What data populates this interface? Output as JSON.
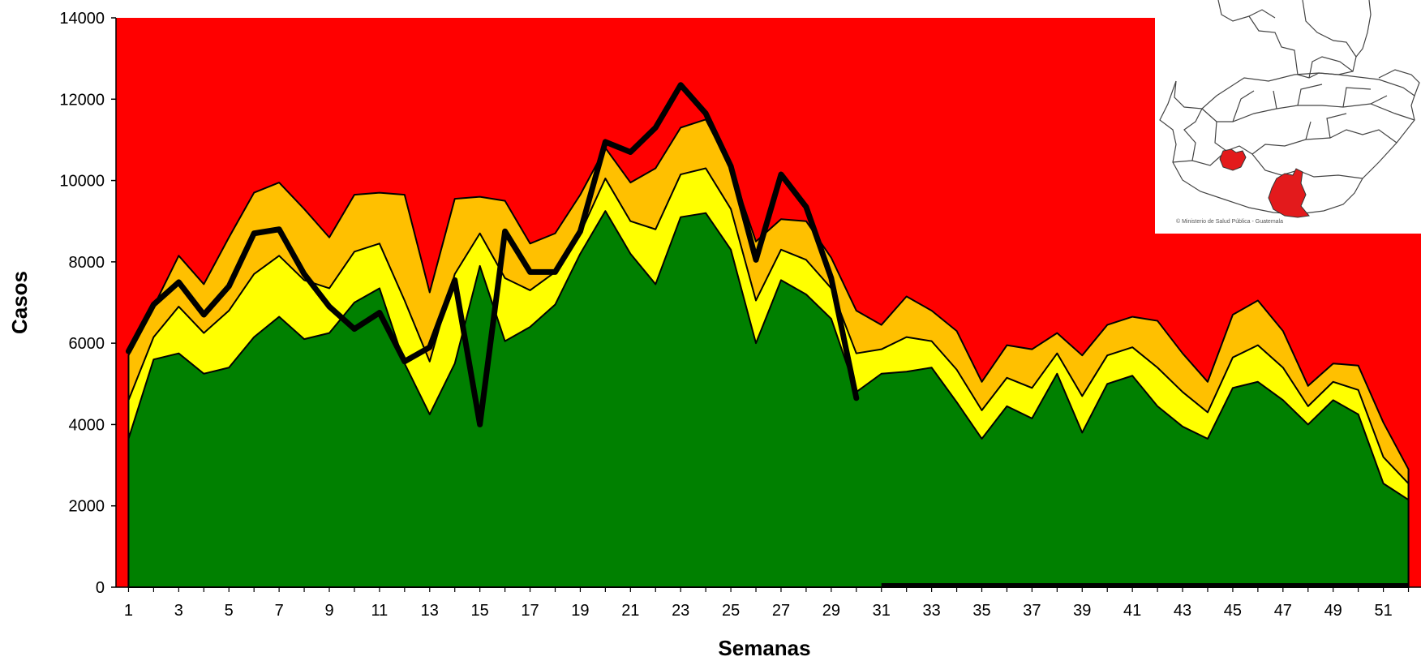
{
  "chart_data": {
    "type": "area",
    "xlabel": "Semanas",
    "ylabel": "Casos",
    "ylim": [
      0,
      14000
    ],
    "yticks": [
      0,
      2000,
      4000,
      6000,
      8000,
      10000,
      12000,
      14000
    ],
    "xticks": [
      1,
      3,
      5,
      7,
      9,
      11,
      13,
      15,
      17,
      19,
      21,
      23,
      25,
      27,
      29,
      31,
      33,
      35,
      37,
      39,
      41,
      43,
      45,
      47,
      49,
      51
    ],
    "x": [
      1,
      2,
      3,
      4,
      5,
      6,
      7,
      8,
      9,
      10,
      11,
      12,
      13,
      14,
      15,
      16,
      17,
      18,
      19,
      20,
      21,
      22,
      23,
      24,
      25,
      26,
      27,
      28,
      29,
      30,
      31,
      32,
      33,
      34,
      35,
      36,
      37,
      38,
      39,
      40,
      41,
      42,
      43,
      44,
      45,
      46,
      47,
      48,
      49,
      50,
      51,
      52
    ],
    "grid": false,
    "legend": "none",
    "background_color": "#ff0000",
    "series": [
      {
        "color": "#ffc000",
        "values": [
          5700,
          6900,
          8150,
          7450,
          8600,
          9700,
          9950,
          9300,
          8600,
          9650,
          9700,
          9650,
          7250,
          9550,
          9600,
          9500,
          8450,
          8700,
          9650,
          10800,
          9950,
          10300,
          11300,
          11500,
          10300,
          8500,
          9050,
          9000,
          8100,
          6800,
          6450,
          7150,
          6800,
          6300,
          5050,
          5950,
          5850,
          6250,
          5700,
          6450,
          6650,
          6550,
          5750,
          5050,
          6700,
          7050,
          6300,
          4950,
          5500,
          5450,
          4050,
          2900
        ]
      },
      {
        "color": "#ffff00",
        "values": [
          4600,
          6150,
          6900,
          6250,
          6800,
          7700,
          8150,
          7550,
          7350,
          8250,
          8450,
          7050,
          5550,
          7700,
          8700,
          7600,
          7300,
          7750,
          8700,
          10050,
          9000,
          8800,
          10150,
          10300,
          9300,
          7050,
          8300,
          8050,
          7350,
          5750,
          5850,
          6150,
          6050,
          5350,
          4350,
          5150,
          4900,
          5750,
          4700,
          5700,
          5900,
          5400,
          4800,
          4300,
          5650,
          5950,
          5400,
          4450,
          5050,
          4850,
          3200,
          2550
        ]
      },
      {
        "color": "#008000",
        "values": [
          3650,
          5600,
          5750,
          5250,
          5400,
          6150,
          6650,
          6100,
          6250,
          7000,
          7350,
          5500,
          4250,
          5500,
          7900,
          6050,
          6400,
          6950,
          8200,
          9250,
          8200,
          7450,
          9100,
          9200,
          8300,
          6000,
          7550,
          7200,
          6600,
          4800,
          5250,
          5300,
          5400,
          4550,
          3650,
          4450,
          4150,
          5250,
          3800,
          5000,
          5200,
          4450,
          3950,
          3650,
          4900,
          5050,
          4600,
          4000,
          4600,
          4250,
          2550,
          2150
        ]
      },
      {
        "color": "#000000",
        "values": [
          5800,
          6950,
          7500,
          6700,
          7400,
          8700,
          8800,
          7700,
          6900,
          6350,
          6750,
          5550,
          5900,
          7550,
          4000,
          8750,
          7750,
          7750,
          8750,
          10950,
          10700,
          11300,
          12350,
          11650,
          10350,
          8050,
          10150,
          9350,
          7600,
          4650,
          null,
          null,
          null,
          null,
          null,
          null,
          null,
          null,
          null,
          null,
          null,
          null,
          null,
          null,
          null,
          null,
          null,
          null,
          null,
          null,
          null,
          null
        ]
      }
    ]
  },
  "inset_map": {
    "credit": "© Ministerio de Salud Pública - Guatemala"
  }
}
